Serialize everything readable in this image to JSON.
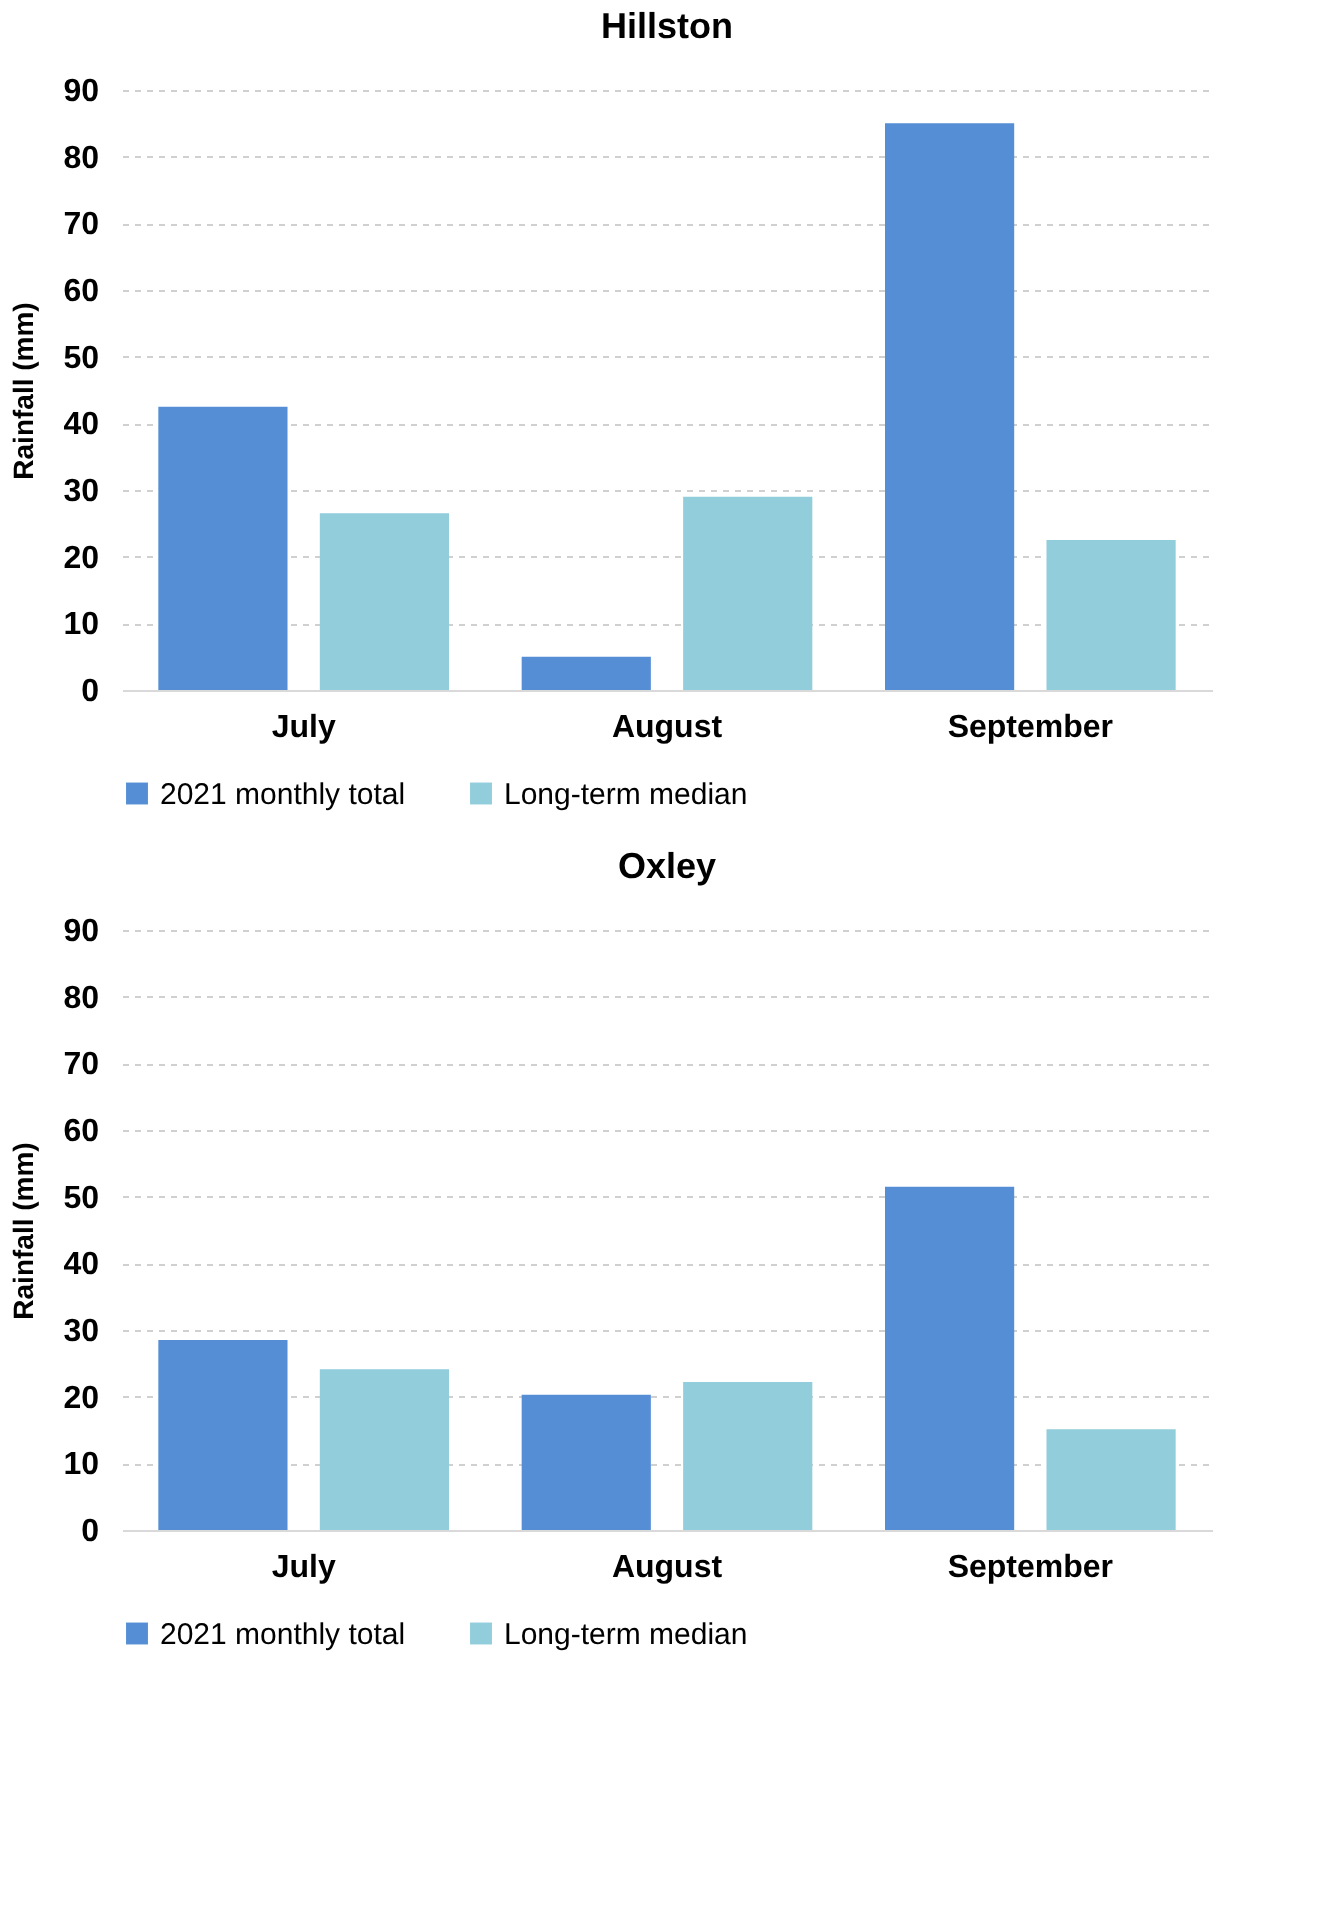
{
  "chart_data": [
    {
      "type": "bar",
      "title": "Hillston",
      "ylabel": "Rainfall (mm)",
      "categories": [
        "July",
        "August",
        "September"
      ],
      "ylim": [
        0,
        90
      ],
      "yticks": [
        0,
        10,
        20,
        30,
        40,
        50,
        60,
        70,
        80,
        90
      ],
      "grid": "y",
      "legend": "bottom",
      "series": [
        {
          "name": "2021 monthly total",
          "color": "#558ed5",
          "values": [
            42.5,
            5,
            85
          ]
        },
        {
          "name": "Long-term median",
          "color": "#92cddc",
          "values": [
            26.5,
            29,
            22.5
          ]
        }
      ]
    },
    {
      "type": "bar",
      "title": "Oxley",
      "ylabel": "Rainfall (mm)",
      "categories": [
        "July",
        "August",
        "September"
      ],
      "ylim": [
        0,
        90
      ],
      "yticks": [
        0,
        10,
        20,
        30,
        40,
        50,
        60,
        70,
        80,
        90
      ],
      "grid": "y",
      "legend": "bottom",
      "series": [
        {
          "name": "2021 monthly total",
          "color": "#558ed5",
          "values": [
            28.5,
            20.3,
            51.5
          ]
        },
        {
          "name": "Long-term median",
          "color": "#92cddc",
          "values": [
            24.1,
            22.2,
            15.1
          ]
        }
      ]
    }
  ]
}
